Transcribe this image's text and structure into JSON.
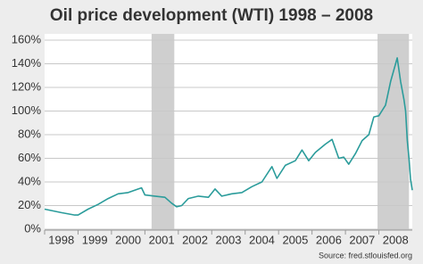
{
  "chart_data": {
    "type": "line",
    "title": "Oil price development (WTI) 1998 – 2008",
    "source": "Source: fred.stlouisfed.org",
    "x": [
      1998.0,
      1998.5,
      1998.9,
      1999.0,
      1999.3,
      1999.6,
      1999.9,
      2000.2,
      2000.5,
      2000.8,
      2000.9,
      2001.0,
      2001.3,
      2001.6,
      2001.8,
      2001.95,
      2002.1,
      2002.3,
      2002.6,
      2002.9,
      2003.1,
      2003.3,
      2003.6,
      2003.9,
      2004.2,
      2004.5,
      2004.8,
      2004.95,
      2005.2,
      2005.5,
      2005.7,
      2005.9,
      2006.1,
      2006.4,
      2006.6,
      2006.8,
      2006.95,
      2007.1,
      2007.3,
      2007.5,
      2007.7,
      2007.85,
      2008.0,
      2008.2,
      2008.35,
      2008.5,
      2008.55,
      2008.65,
      2008.75,
      2008.8,
      2008.85,
      2008.9,
      2008.95,
      2009.0
    ],
    "series": [
      {
        "name": "WTI",
        "color": "#2b9c9b",
        "values": [
          17,
          14,
          12,
          12,
          17,
          21,
          26,
          30,
          31,
          34,
          35,
          29,
          28,
          27,
          22,
          19,
          20,
          26,
          28,
          27,
          34,
          28,
          30,
          31,
          36,
          40,
          53,
          43,
          54,
          58,
          67,
          58,
          65,
          72,
          76,
          60,
          61,
          55,
          64,
          75,
          80,
          95,
          96,
          105,
          125,
          140,
          145,
          125,
          110,
          100,
          75,
          60,
          42,
          33
        ]
      }
    ],
    "shaded_periods": [
      [
        2001.2,
        2001.88
      ],
      [
        2007.96,
        2008.9
      ]
    ],
    "xlim": [
      1998,
      2009
    ],
    "xticks": [
      1998,
      1999,
      2000,
      2001,
      2002,
      2003,
      2004,
      2005,
      2006,
      2007,
      2008
    ],
    "ylim": [
      0,
      160
    ],
    "yticks": [
      {
        "value": 0,
        "label": "0%"
      },
      {
        "value": 20,
        "label": "20%"
      },
      {
        "value": 40,
        "label": "40%"
      },
      {
        "value": 60,
        "label": "60%"
      },
      {
        "value": 80,
        "label": "80%"
      },
      {
        "value": 100,
        "label": "100%"
      },
      {
        "value": 120,
        "label": "120%"
      },
      {
        "value": 140,
        "label": "140%"
      },
      {
        "value": 160,
        "label": "160%"
      }
    ],
    "grid": true
  }
}
